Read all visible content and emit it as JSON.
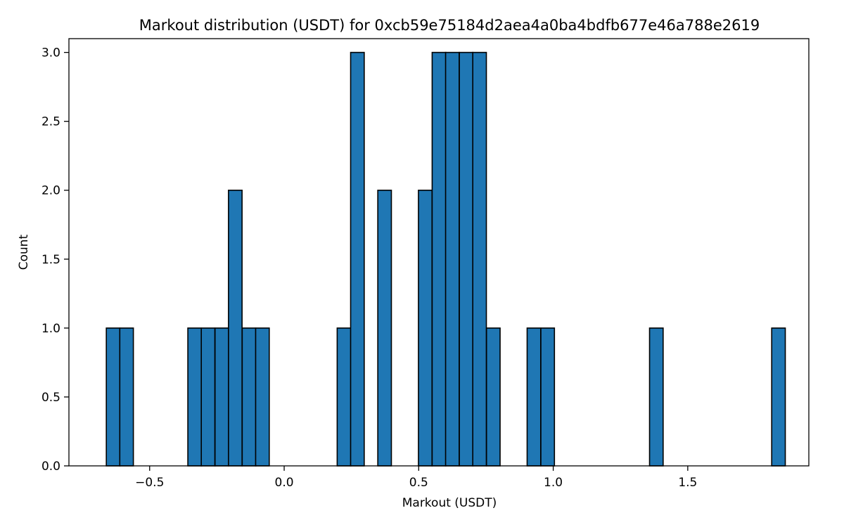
{
  "chart_data": {
    "type": "bar",
    "subtype": "histogram",
    "title": "Markout distribution (USDT) for 0xcb59e75184d2aea4a0ba4bdfb677e46a788e2619",
    "xlabel": "Markout (USDT)",
    "ylabel": "Count",
    "xlim": [
      -0.8,
      1.95
    ],
    "ylim": [
      0,
      3.1
    ],
    "x_ticks": [
      {
        "value": -0.5,
        "label": "−0.5"
      },
      {
        "value": 0.0,
        "label": "0.0"
      },
      {
        "value": 0.5,
        "label": "0.5"
      },
      {
        "value": 1.0,
        "label": "1.0"
      },
      {
        "value": 1.5,
        "label": "1.5"
      }
    ],
    "y_ticks": [
      {
        "value": 0.0,
        "label": "0.0"
      },
      {
        "value": 0.5,
        "label": "0.5"
      },
      {
        "value": 1.0,
        "label": "1.0"
      },
      {
        "value": 1.5,
        "label": "1.5"
      },
      {
        "value": 2.0,
        "label": "2.0"
      },
      {
        "value": 2.5,
        "label": "2.5"
      },
      {
        "value": 3.0,
        "label": "3.0"
      }
    ],
    "bin_width": 0.0505,
    "bins": [
      {
        "x0": -0.661,
        "count": 1
      },
      {
        "x0": -0.611,
        "count": 1
      },
      {
        "x0": -0.358,
        "count": 1
      },
      {
        "x0": -0.308,
        "count": 1
      },
      {
        "x0": -0.257,
        "count": 1
      },
      {
        "x0": -0.207,
        "count": 2
      },
      {
        "x0": -0.156,
        "count": 1
      },
      {
        "x0": -0.106,
        "count": 1
      },
      {
        "x0": 0.197,
        "count": 1
      },
      {
        "x0": 0.247,
        "count": 3
      },
      {
        "x0": 0.348,
        "count": 2
      },
      {
        "x0": 0.499,
        "count": 2
      },
      {
        "x0": 0.55,
        "count": 3
      },
      {
        "x0": 0.6,
        "count": 3
      },
      {
        "x0": 0.651,
        "count": 3
      },
      {
        "x0": 0.701,
        "count": 3
      },
      {
        "x0": 0.752,
        "count": 1
      },
      {
        "x0": 0.903,
        "count": 1
      },
      {
        "x0": 0.954,
        "count": 1
      },
      {
        "x0": 1.358,
        "count": 1
      },
      {
        "x0": 1.812,
        "count": 1
      }
    ],
    "bar_color": "#1f77b4",
    "edge_color": "#000000",
    "grid": false,
    "legend": "none"
  }
}
